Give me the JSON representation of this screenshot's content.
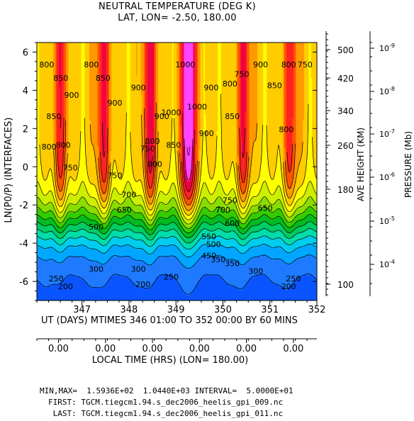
{
  "title": {
    "line1": "NEUTRAL TEMPERATURE (DEG K)",
    "line2": "LAT, LON= -2.50,   180.00"
  },
  "x_axis": {
    "label": "UT (DAYS) MTIMES 346 01:00 TO 352 00:00 BY    60 MINS",
    "ticks": [
      "347",
      "348",
      "349",
      "350",
      "351",
      "352"
    ]
  },
  "local_time_axis": {
    "label": "LOCAL TIME (HRS) (LON= 180.00)",
    "ticks": [
      "0.00",
      "0.00",
      "0.00",
      "0.00",
      "0.00",
      "0.00"
    ]
  },
  "y_left": {
    "label": "LN(P0/P) (INTERFACES)",
    "ticks": [
      "6",
      "4",
      "2",
      "0",
      "-2",
      "-4",
      "-6"
    ]
  },
  "y_height": {
    "label": "AVE HEIGHT (KM)",
    "ticks": [
      "500",
      "420",
      "340",
      "260",
      "180",
      "100"
    ]
  },
  "y_pressure": {
    "label": "PRESSURE (Mb)",
    "ticks": [
      "10",
      "10",
      "10",
      "10",
      "10",
      "10"
    ],
    "exponents": [
      "-9",
      "-8",
      "-7",
      "-6",
      "-5",
      "-4"
    ]
  },
  "contour_labels": [
    "800",
    "850",
    "900",
    "800",
    "850",
    "900",
    "800",
    "1000",
    "900",
    "800",
    "750",
    "850",
    "900",
    "850",
    "800",
    "750",
    "850",
    "800",
    "750",
    "900",
    "800",
    "750",
    "850",
    "800",
    "900",
    "1000",
    "1000",
    "900",
    "800",
    "750",
    "700",
    "650",
    "750",
    "700",
    "650",
    "600",
    "500",
    "550",
    "500",
    "450",
    "350",
    "300",
    "250",
    "200",
    "300",
    "250",
    "200",
    "350",
    "300",
    "250",
    "200"
  ],
  "footer": {
    "minmax": "MIN,MAX=  1.5936E+02  1.0440E+03 INTERVAL=  5.0000E+01",
    "first": "FIRST: TGCM.tiegcm1.94.s_dec2006_heelis_gpi_009.nc",
    "last": " LAST: TGCM.tiegcm1.94.s_dec2006_heelis_gpi_011.nc"
  },
  "chart_data": {
    "type": "heatmap",
    "title": "NEUTRAL TEMPERATURE (DEG K)",
    "subtitle": "LAT, LON= -2.50,   180.00",
    "xlabel": "UT (DAYS) MTIMES 346 01:00 TO 352 00:00 BY    60 MINS",
    "ylabel": "LN(P0/P) (INTERFACES)",
    "xlim": [
      346.04,
      352.0
    ],
    "ylim": [
      -7,
      6.5
    ],
    "contour_levels": [
      200,
      250,
      300,
      350,
      400,
      450,
      500,
      550,
      600,
      650,
      700,
      750,
      800,
      850,
      900,
      950,
      1000
    ],
    "contour_interval": 50,
    "min": 159.36,
    "max": 1044.0,
    "colors": [
      "#0033ff",
      "#0a55ff",
      "#1f7aff",
      "#00a6ff",
      "#00ccee",
      "#00ddaa",
      "#00cc66",
      "#00bb22",
      "#33cc00",
      "#88dd00",
      "#ccee00",
      "#ffff00",
      "#ffcc00",
      "#ff9900",
      "#ff5500",
      "#ff2222",
      "#ee0044",
      "#ff0088",
      "#ff00cc",
      "#ff44ff"
    ],
    "daily_max_x": [
      346.55,
      347.45,
      348.45,
      349.27,
      350.45,
      351.45
    ],
    "daily_max_T": [
      880,
      900,
      920,
      1044,
      900,
      880
    ],
    "level_boundary_heights": {
      "200": -5.3,
      "250": -4.9,
      "300": -4.5,
      "350": -4.2,
      "400": -3.9,
      "450": -3.6,
      "500": -3.3,
      "550": -3.0,
      "600": -2.7,
      "650": -2.3,
      "700": -1.9,
      "750": -1.2,
      "800": -0.3
    }
  }
}
